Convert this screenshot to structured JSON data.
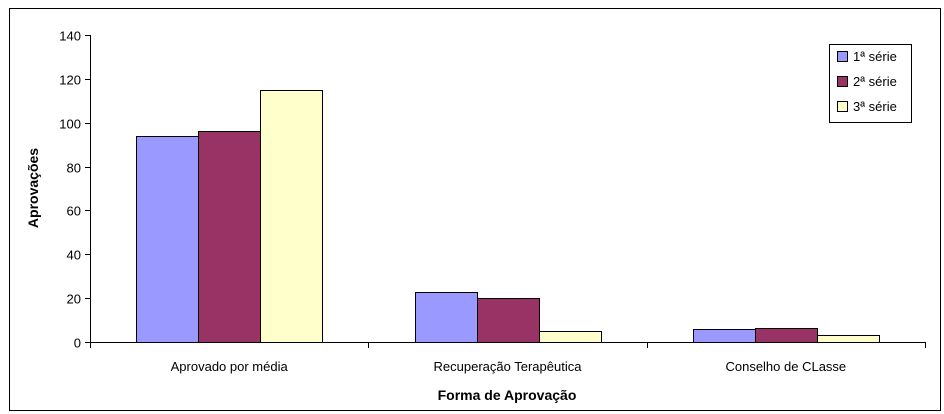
{
  "chart_data": {
    "type": "bar",
    "title": "",
    "xlabel": "Forma de Aprovação",
    "ylabel": "Aprovações",
    "categories": [
      "Aprovado por média",
      "Recuperação Terapêutica",
      "Conselho de CLasse"
    ],
    "series": [
      {
        "name": "1ª série",
        "color": "#9999FF",
        "values": [
          94,
          23,
          6
        ]
      },
      {
        "name": "2ª série",
        "color": "#993366",
        "values": [
          96,
          20,
          6.5
        ]
      },
      {
        "name": "3ª série",
        "color": "#FFFFCC",
        "values": [
          115,
          5,
          3
        ]
      }
    ],
    "ylim": [
      0,
      140
    ],
    "yticks": [
      0,
      20,
      40,
      60,
      80,
      100,
      120,
      140
    ],
    "grid": false,
    "legend_position": "top-right"
  }
}
